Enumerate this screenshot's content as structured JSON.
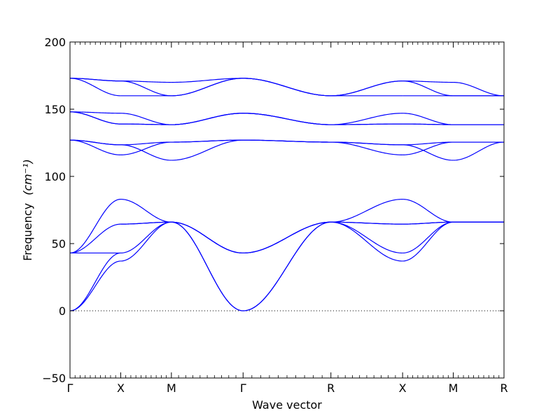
{
  "chart_data": {
    "type": "line",
    "title": "",
    "xlabel": "Wave vector",
    "ylabel": "Frequency",
    "ylabel_unit": "(cm⁻¹)",
    "ylim": [
      -50,
      200
    ],
    "y_ticks": [
      -50,
      0,
      50,
      100,
      150,
      200
    ],
    "y_tick_labels": [
      "−50",
      "0",
      "50",
      "100",
      "150",
      "200"
    ],
    "x_high_symmetry_points": [
      {
        "label": "Γ",
        "position": 0
      },
      {
        "label": "X",
        "position": 0.5
      },
      {
        "label": "M",
        "position": 1.0
      },
      {
        "label": "Γ",
        "position": 1.707
      },
      {
        "label": "R",
        "position": 2.573
      },
      {
        "label": "X",
        "position": 3.28
      },
      {
        "label": "M",
        "position": 3.78
      },
      {
        "label": "R",
        "position": 4.28
      }
    ],
    "xlim": [
      0,
      4.28
    ],
    "zero_line": true,
    "grid": false,
    "line_color": "#0000ff",
    "segments": [
      {
        "from": "Γ",
        "to": "X",
        "branches": [
          [
            0,
            37
          ],
          [
            0,
            43
          ],
          [
            43,
            43
          ],
          [
            43,
            64.5
          ],
          [
            43,
            83
          ],
          [
            127,
            116
          ],
          [
            127,
            123.5
          ],
          [
            127,
            123.5
          ],
          [
            148,
            139
          ],
          [
            148,
            139
          ],
          [
            148,
            147
          ],
          [
            173,
            160
          ],
          [
            173,
            171
          ],
          [
            173,
            171
          ]
        ]
      },
      {
        "from": "X",
        "to": "M",
        "branches": [
          [
            37,
            66
          ],
          [
            43,
            66
          ],
          [
            64.5,
            66
          ],
          [
            64.5,
            66
          ],
          [
            83,
            66
          ],
          [
            116,
            125.5
          ],
          [
            123.5,
            112
          ],
          [
            123.5,
            125.5
          ],
          [
            139,
            138.5
          ],
          [
            139,
            138.5
          ],
          [
            147,
            138.5
          ],
          [
            160,
            160
          ],
          [
            171,
            160
          ],
          [
            171,
            170
          ]
        ]
      },
      {
        "from": "M",
        "to": "Γ",
        "branches": [
          [
            66,
            0
          ],
          [
            66,
            0
          ],
          [
            66,
            43
          ],
          [
            66,
            43
          ],
          [
            66,
            43
          ],
          [
            125.5,
            127
          ],
          [
            112,
            127
          ],
          [
            125.5,
            127
          ],
          [
            138.5,
            147
          ],
          [
            138.5,
            147
          ],
          [
            138.5,
            147
          ],
          [
            160,
            173
          ],
          [
            160,
            173
          ],
          [
            170,
            173
          ]
        ]
      },
      {
        "from": "Γ",
        "to": "R",
        "branches": [
          [
            0,
            66
          ],
          [
            0,
            66
          ],
          [
            43,
            66
          ],
          [
            43,
            66
          ],
          [
            43,
            66
          ],
          [
            127,
            125.5
          ],
          [
            127,
            125.5
          ],
          [
            127,
            125.5
          ],
          [
            147,
            138.5
          ],
          [
            147,
            138.5
          ],
          [
            147,
            138.5
          ],
          [
            173,
            160
          ],
          [
            173,
            160
          ],
          [
            173,
            160
          ]
        ]
      },
      {
        "from": "R",
        "to": "X",
        "branches": [
          [
            66,
            37
          ],
          [
            66,
            43
          ],
          [
            66,
            64.5
          ],
          [
            66,
            64.5
          ],
          [
            66,
            83
          ],
          [
            125.5,
            116
          ],
          [
            125.5,
            123.5
          ],
          [
            125.5,
            123.5
          ],
          [
            138.5,
            139
          ],
          [
            138.5,
            139
          ],
          [
            138.5,
            147
          ],
          [
            160,
            160
          ],
          [
            160,
            171
          ],
          [
            160,
            171
          ]
        ]
      },
      {
        "from": "X",
        "to": "M",
        "branches": [
          [
            37,
            66
          ],
          [
            43,
            66
          ],
          [
            64.5,
            66
          ],
          [
            64.5,
            66
          ],
          [
            83,
            66
          ],
          [
            116,
            125.5
          ],
          [
            123.5,
            125.5
          ],
          [
            123.5,
            112
          ],
          [
            139,
            138.5
          ],
          [
            139,
            138.5
          ],
          [
            147,
            138.5
          ],
          [
            160,
            160
          ],
          [
            171,
            160
          ],
          [
            171,
            170
          ]
        ]
      },
      {
        "from": "M",
        "to": "R",
        "branches": [
          [
            66,
            66
          ],
          [
            66,
            66
          ],
          [
            66,
            66
          ],
          [
            66,
            66
          ],
          [
            66,
            66
          ],
          [
            125.5,
            125.5
          ],
          [
            125.5,
            125.5
          ],
          [
            112,
            125.5
          ],
          [
            138.5,
            138.5
          ],
          [
            138.5,
            138.5
          ],
          [
            138.5,
            138.5
          ],
          [
            160,
            160
          ],
          [
            160,
            160
          ],
          [
            170,
            160
          ]
        ]
      }
    ]
  }
}
